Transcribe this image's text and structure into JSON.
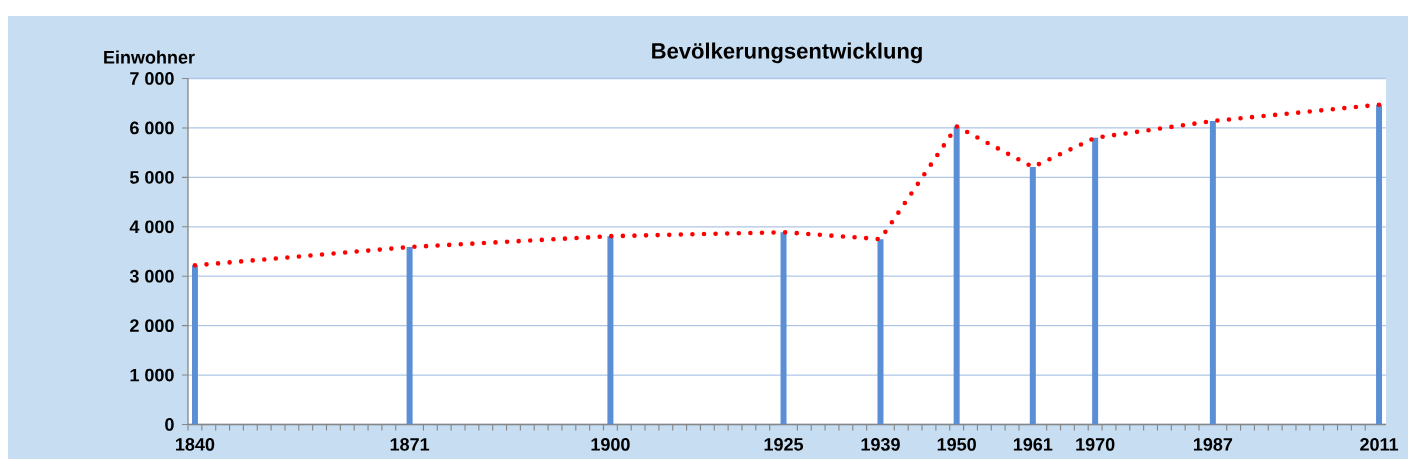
{
  "chart_data": {
    "type": "bar",
    "title": "Bevölkerungsentwicklung",
    "ylabel": "Einwohner",
    "x": [
      1840,
      1871,
      1900,
      1925,
      1939,
      1950,
      1961,
      1970,
      1987,
      2011
    ],
    "series": [
      {
        "color": "#5b8fd5",
        "values": [
          3220,
          3590,
          3810,
          3890,
          3750,
          6030,
          5210,
          5800,
          6140,
          6470
        ]
      },
      {
        "type": "line",
        "color": "#ff0000",
        "line_style": "dotted",
        "values": [
          3220,
          3590,
          3810,
          3890,
          3750,
          6030,
          5210,
          5800,
          6140,
          6470
        ]
      }
    ],
    "xlim": [
      1839,
      2012
    ],
    "xticks": [
      {
        "value": 1839,
        "label": null
      },
      1840,
      {
        "value": 1841,
        "label": null
      },
      {
        "value": 1843,
        "label": null
      },
      {
        "value": 1845,
        "label": null
      },
      {
        "value": 1847,
        "label": null
      },
      {
        "value": 1849,
        "label": null
      },
      {
        "value": 1851,
        "label": null
      },
      {
        "value": 1853,
        "label": null
      },
      {
        "value": 1855,
        "label": null
      },
      {
        "value": 1857,
        "label": null
      },
      {
        "value": 1859,
        "label": null
      },
      {
        "value": 1861,
        "label": null
      },
      {
        "value": 1863,
        "label": null
      },
      {
        "value": 1865,
        "label": null
      },
      {
        "value": 1867,
        "label": null
      },
      {
        "value": 1869,
        "label": null
      },
      1871,
      {
        "value": 1873,
        "label": null
      },
      {
        "value": 1875,
        "label": null
      },
      {
        "value": 1877,
        "label": null
      },
      {
        "value": 1879,
        "label": null
      },
      {
        "value": 1881,
        "label": null
      },
      {
        "value": 1883,
        "label": null
      },
      {
        "value": 1885,
        "label": null
      },
      {
        "value": 1887,
        "label": null
      },
      {
        "value": 1889,
        "label": null
      },
      {
        "value": 1891,
        "label": null
      },
      {
        "value": 1893,
        "label": null
      },
      {
        "value": 1895,
        "label": null
      },
      {
        "value": 1897,
        "label": null
      },
      {
        "value": 1899,
        "label": null
      },
      1900,
      {
        "value": 1901,
        "label": null
      },
      {
        "value": 1903,
        "label": null
      },
      {
        "value": 1905,
        "label": null
      },
      {
        "value": 1907,
        "label": null
      },
      {
        "value": 1909,
        "label": null
      },
      {
        "value": 1911,
        "label": null
      },
      {
        "value": 1913,
        "label": null
      },
      {
        "value": 1915,
        "label": null
      },
      {
        "value": 1917,
        "label": null
      },
      {
        "value": 1919,
        "label": null
      },
      {
        "value": 1921,
        "label": null
      },
      {
        "value": 1923,
        "label": null
      },
      1925,
      {
        "value": 1927,
        "label": null
      },
      {
        "value": 1929,
        "label": null
      },
      {
        "value": 1931,
        "label": null
      },
      {
        "value": 1933,
        "label": null
      },
      {
        "value": 1935,
        "label": null
      },
      {
        "value": 1937,
        "label": null
      },
      1939,
      {
        "value": 1941,
        "label": null
      },
      {
        "value": 1943,
        "label": null
      },
      {
        "value": 1945,
        "label": null
      },
      {
        "value": 1947,
        "label": null
      },
      {
        "value": 1949,
        "label": null
      },
      1950,
      {
        "value": 1951,
        "label": null
      },
      {
        "value": 1953,
        "label": null
      },
      {
        "value": 1955,
        "label": null
      },
      {
        "value": 1957,
        "label": null
      },
      {
        "value": 1959,
        "label": null
      },
      1961,
      {
        "value": 1963,
        "label": null
      },
      {
        "value": 1965,
        "label": null
      },
      {
        "value": 1967,
        "label": null
      },
      {
        "value": 1969,
        "label": null
      },
      1970,
      {
        "value": 1971,
        "label": null
      },
      {
        "value": 1973,
        "label": null
      },
      {
        "value": 1975,
        "label": null
      },
      {
        "value": 1977,
        "label": null
      },
      {
        "value": 1979,
        "label": null
      },
      {
        "value": 1981,
        "label": null
      },
      {
        "value": 1983,
        "label": null
      },
      {
        "value": 1985,
        "label": null
      },
      1987,
      {
        "value": 1989,
        "label": null
      },
      {
        "value": 1991,
        "label": null
      },
      {
        "value": 1993,
        "label": null
      },
      {
        "value": 1995,
        "label": null
      },
      {
        "value": 1997,
        "label": null
      },
      {
        "value": 1999,
        "label": null
      },
      {
        "value": 2001,
        "label": null
      },
      {
        "value": 2003,
        "label": null
      },
      {
        "value": 2005,
        "label": null
      },
      {
        "value": 2007,
        "label": null
      },
      {
        "value": 2009,
        "label": null
      },
      2011
    ],
    "ylim": [
      0,
      7000
    ],
    "yticks": [
      0,
      {
        "value": 1000,
        "label": "1 000"
      },
      {
        "value": 2000,
        "label": "2 000"
      },
      {
        "value": 3000,
        "label": "3 000"
      },
      {
        "value": 4000,
        "label": "4 000"
      },
      {
        "value": 5000,
        "label": "5 000"
      },
      {
        "value": 6000,
        "label": "6 000"
      },
      {
        "value": 7000,
        "label": "7 000"
      }
    ],
    "grid": "y"
  }
}
